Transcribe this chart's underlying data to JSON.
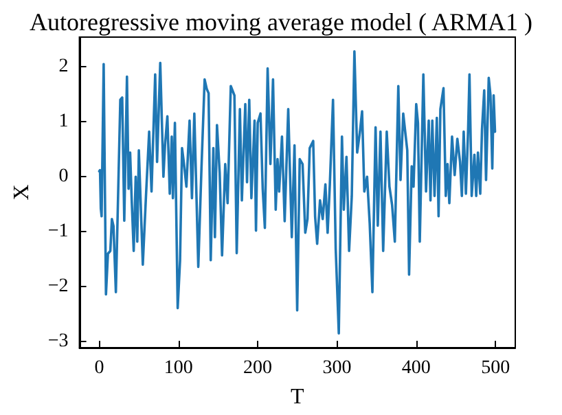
{
  "chart_data": {
    "type": "line",
    "title": "Autoregressive moving average model ( ARMA1 )",
    "xlabel": "T",
    "ylabel": "X",
    "x": [
      0,
      1,
      2,
      3,
      5.6,
      8.5,
      11,
      14,
      16,
      18,
      21,
      26.6,
      29,
      31.6,
      35,
      37,
      39,
      41,
      43.5,
      46,
      48,
      50,
      55,
      59,
      63,
      66,
      70.6,
      73,
      77,
      81,
      83,
      86,
      89,
      91.5,
      93,
      95.5,
      99,
      102,
      104.5,
      107,
      110,
      114,
      117,
      120,
      125,
      129,
      133,
      135.6,
      138,
      140.7,
      144,
      146,
      148.6,
      152,
      155,
      159,
      162,
      166,
      170.6,
      173.5,
      177.5,
      180,
      181.4,
      184.3,
      186.5,
      189.3,
      192,
      196,
      197.8,
      200,
      203.5,
      206.3,
      209,
      212.5,
      216,
      219.3,
      222.7,
      225,
      227,
      230.6,
      234,
      238.5,
      243,
      246.4,
      249.8,
      253,
      256.6,
      260,
      262.8,
      265.6,
      270,
      272.4,
      275,
      278.6,
      282,
      285.4,
      288.2,
      291,
      295,
      298.4,
      302.3,
      306.3,
      308.6,
      312,
      315.3,
      318.7,
      322,
      325.5,
      329,
      331.7,
      334.5,
      338,
      341.3,
      344.7,
      348.7,
      351.5,
      354.9,
      358.3,
      362.8,
      366.2,
      369.6,
      373,
      377.4,
      380.2,
      383.6,
      386.4,
      388.7,
      391,
      394.3,
      396.6,
      400,
      402.2,
      404.5,
      409,
      412.4,
      415.8,
      418,
      420.3,
      423.1,
      426,
      428.2,
      430.5,
      434.4,
      437.3,
      439.5,
      441.8,
      445.2,
      448.5,
      451.9,
      455.3,
      457.6,
      459.9,
      462.7,
      465.5,
      467.2,
      470,
      473.4,
      475.7,
      477.9,
      480.8,
      483,
      485.8,
      488.1,
      491.5,
      493.7,
      496,
      497.7,
      499.4
    ],
    "series": [
      {
        "color": "#1f77b4",
        "values": [
          0.1,
          0.12,
          -0.58,
          -0.72,
          2.05,
          -2.14,
          -1.4,
          -1.35,
          -0.77,
          -0.9,
          -2.1,
          1.4,
          1.44,
          -0.8,
          1.82,
          -0.22,
          0.44,
          -0.43,
          -1.35,
          0,
          -1.18,
          0.48,
          -1.6,
          -0.35,
          0.82,
          -0.27,
          1.86,
          0.27,
          2.07,
          0,
          0.57,
          1.1,
          -0.31,
          0.73,
          -0.39,
          0.98,
          -2.39,
          -1.52,
          0.52,
          0.23,
          -0.18,
          1.02,
          -0.39,
          1.15,
          -1.64,
          0.15,
          1.77,
          1.6,
          1.52,
          -1.52,
          0.52,
          -1.1,
          0.94,
          0.07,
          -1.43,
          0.23,
          -0.48,
          1.65,
          1.48,
          -1.39,
          1.23,
          -0.43,
          0.15,
          1.32,
          -0.1,
          1.4,
          -0.39,
          1.02,
          -0.98,
          0.98,
          1.15,
          -0.22,
          -0.93,
          1.97,
          0.23,
          1.77,
          -0.6,
          0.32,
          -0.27,
          0.73,
          -0.81,
          1.23,
          -1.1,
          0.57,
          -2.43,
          0.32,
          0.23,
          -1.02,
          -0.77,
          0.52,
          0.65,
          -0.72,
          -1.22,
          -0.43,
          -0.77,
          -0.14,
          -1.02,
          -0.14,
          1.4,
          -1.31,
          -2.85,
          0.73,
          -0.6,
          0.36,
          -1.35,
          -0.35,
          2.28,
          0.44,
          0.82,
          1.19,
          -0.27,
          0,
          -0.85,
          -2.1,
          0.9,
          -0.89,
          0.82,
          -1.35,
          0.82,
          -0.18,
          -0.52,
          -1.18,
          1.65,
          -0.06,
          1.15,
          0.78,
          0.48,
          -1.78,
          0.19,
          -0.18,
          1.32,
          0.98,
          -1.18,
          1.86,
          -0.27,
          1.02,
          -0.43,
          1.02,
          -0.35,
          1.07,
          -0.72,
          1.23,
          1.61,
          -0.35,
          0.23,
          -0.48,
          0.73,
          0.03,
          0.69,
          0.27,
          -0.35,
          0.82,
          -0.31,
          0.86,
          1.86,
          -0.35,
          0.4,
          -0.35,
          0.44,
          -0.31,
          0.86,
          1.57,
          -0.06,
          1.8,
          1.48,
          0.15,
          1.48,
          0.82
        ]
      }
    ],
    "xlim": [
      -25,
      525
    ],
    "xticks": [
      0,
      100,
      200,
      300,
      400,
      500
    ],
    "ylim": [
      -3.11,
      2.54
    ],
    "yticks": [
      {
        "value": -3,
        "label": "−3"
      },
      {
        "value": -2,
        "label": "−2"
      },
      {
        "value": -1,
        "label": "−1"
      },
      0,
      1,
      2
    ],
    "marker": "none",
    "line_style": "solid"
  }
}
